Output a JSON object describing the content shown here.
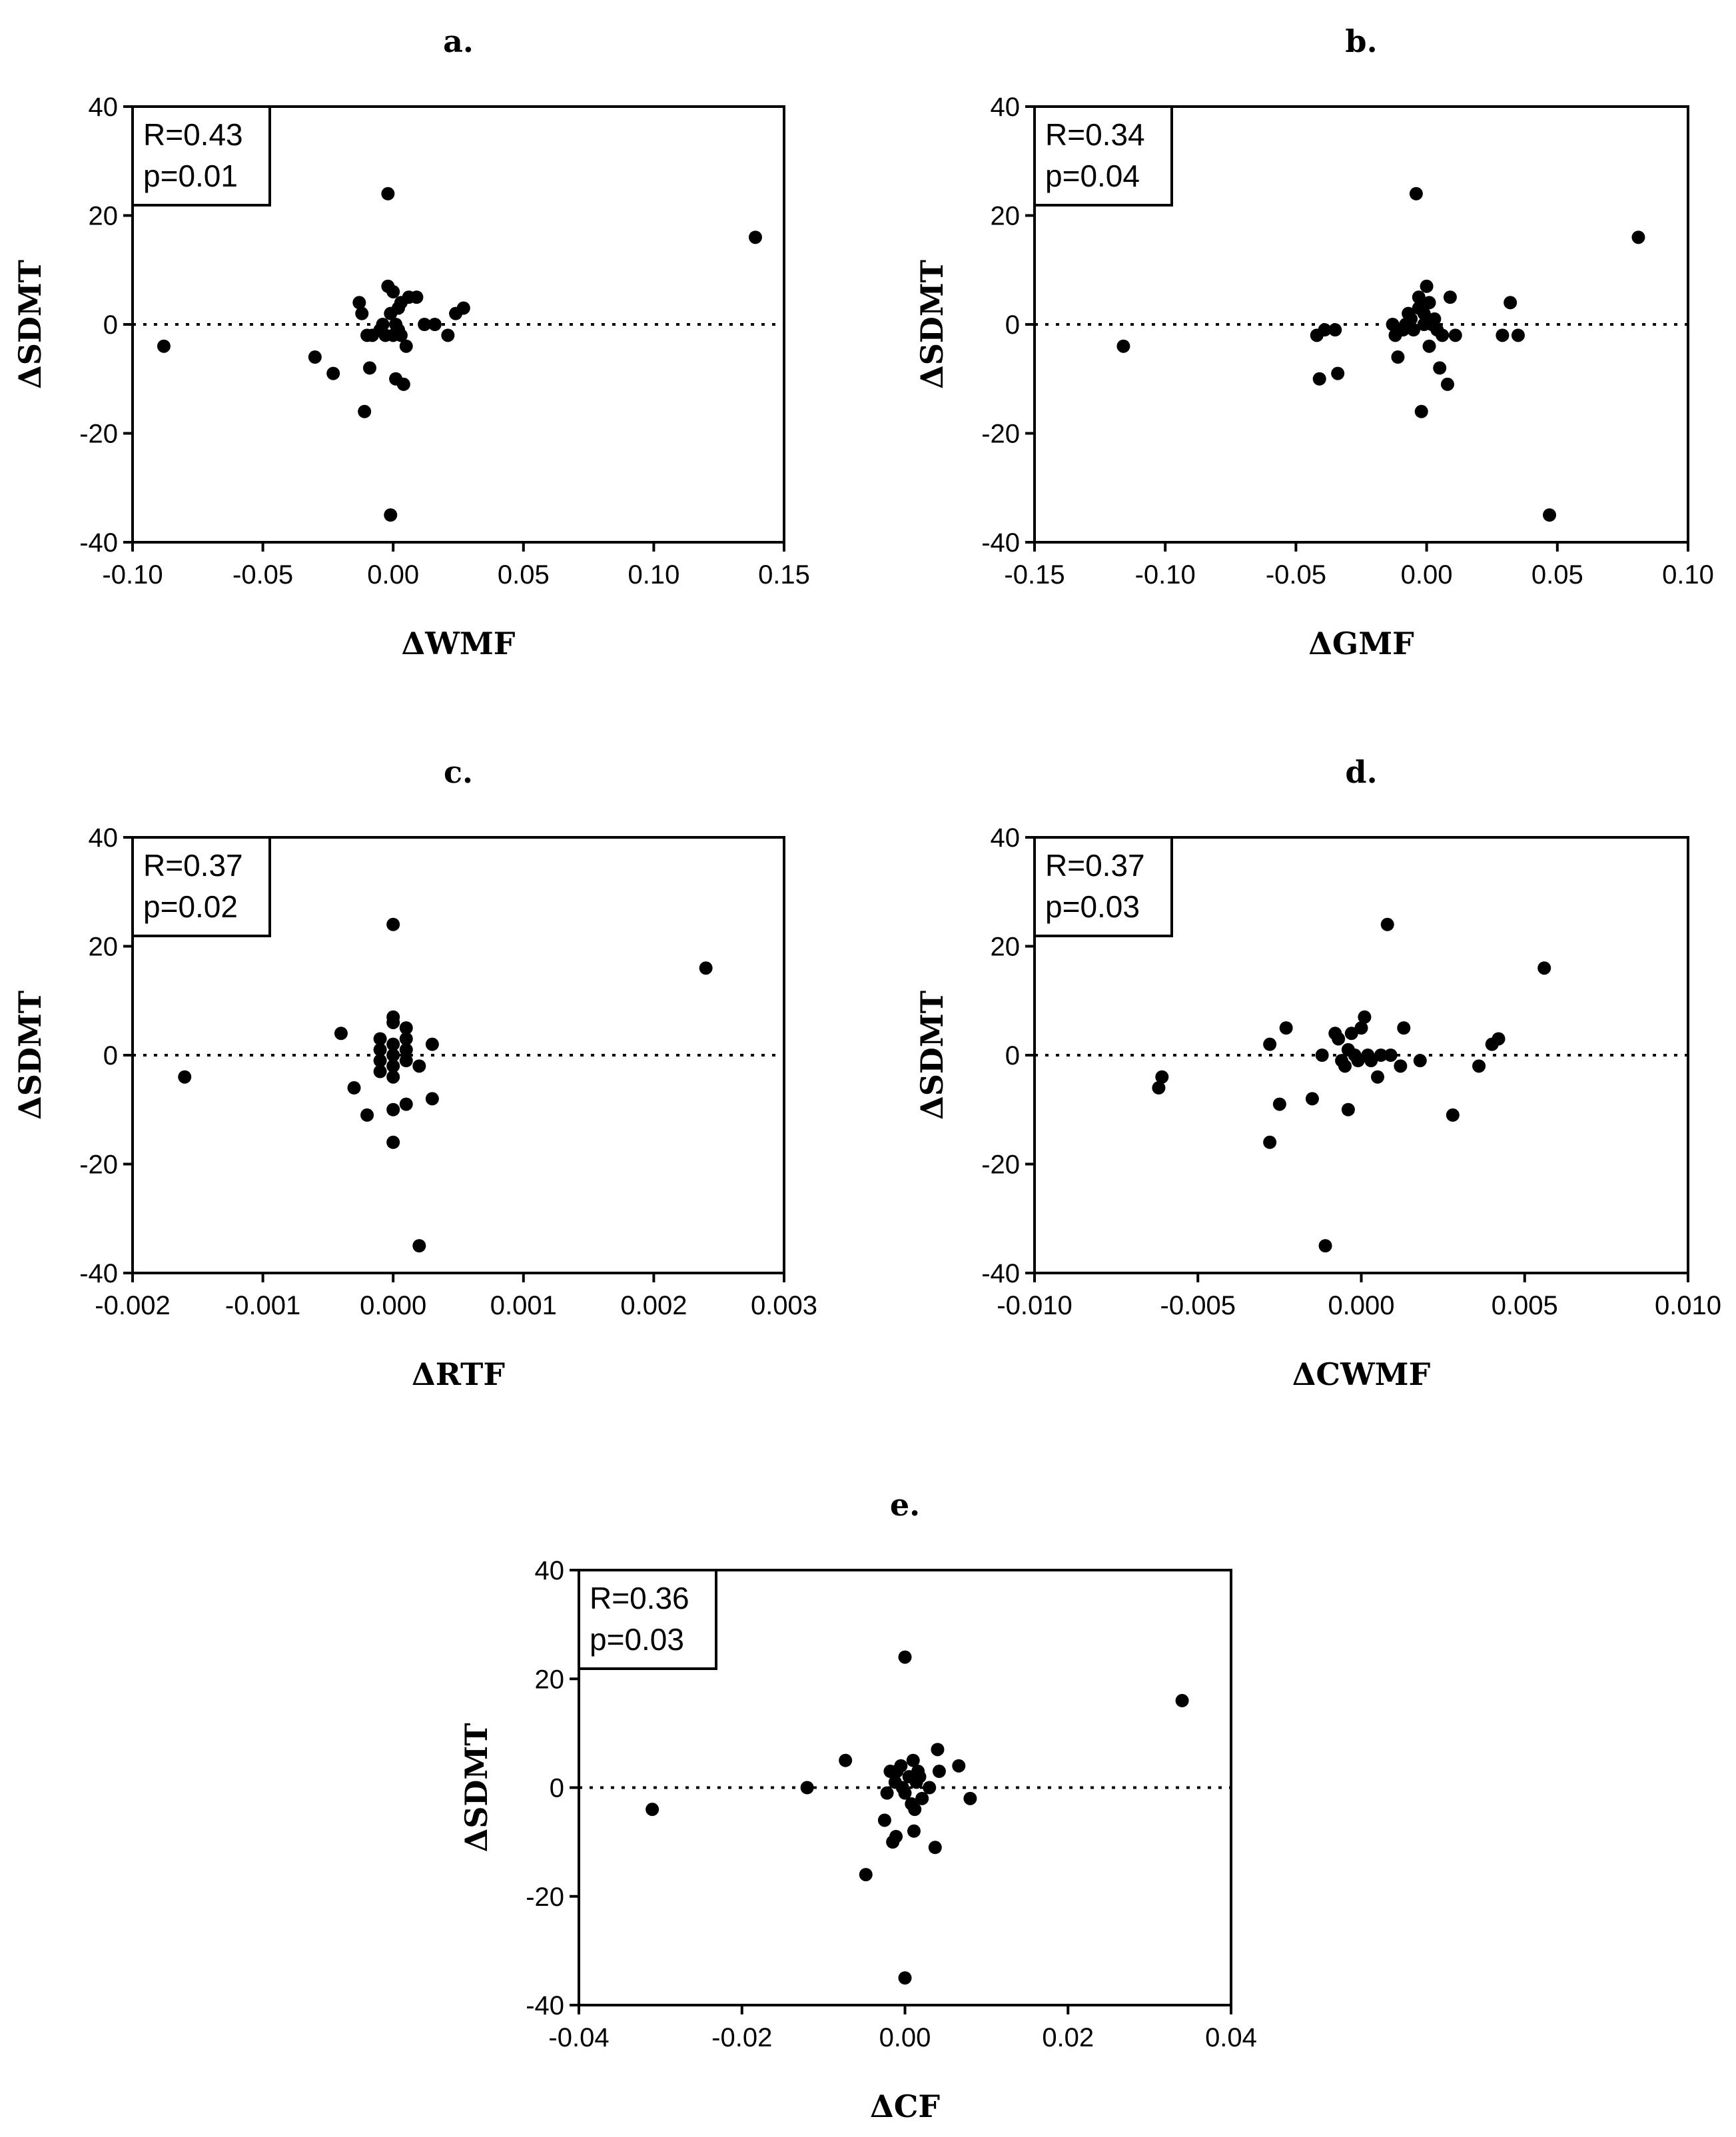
{
  "chart_data": [
    {
      "type": "scatter",
      "panel": "a.",
      "xlabel": "ΔWMF",
      "ylabel": "ΔSDMT",
      "xlim": [
        -0.1,
        0.15
      ],
      "ylim": [
        -40,
        40
      ],
      "xticks": [
        -0.1,
        -0.05,
        0.0,
        0.05,
        0.1,
        0.15
      ],
      "xtick_labels": [
        "-0.10",
        "-0.05",
        "0.00",
        "0.05",
        "0.10",
        "0.15"
      ],
      "yticks": [
        -40,
        -20,
        0,
        20,
        40
      ],
      "ytick_labels": [
        "-40",
        "-20",
        "0",
        "20",
        "40"
      ],
      "stats": {
        "r": "R=0.43",
        "p": "p=0.01"
      },
      "reference_line_y": 0,
      "points": [
        [
          -0.088,
          -4
        ],
        [
          -0.03,
          -6
        ],
        [
          -0.023,
          -9
        ],
        [
          -0.013,
          4
        ],
        [
          -0.012,
          2
        ],
        [
          -0.011,
          -16
        ],
        [
          -0.01,
          -2
        ],
        [
          -0.009,
          -8
        ],
        [
          -0.008,
          -2
        ],
        [
          -0.005,
          -1
        ],
        [
          -0.004,
          0
        ],
        [
          -0.003,
          -2
        ],
        [
          -0.002,
          7
        ],
        [
          -0.002,
          24
        ],
        [
          -0.001,
          -35
        ],
        [
          -0.001,
          2
        ],
        [
          0.0,
          6
        ],
        [
          0.0,
          -2
        ],
        [
          0.001,
          0
        ],
        [
          0.001,
          -10
        ],
        [
          0.002,
          3
        ],
        [
          0.002,
          -1
        ],
        [
          0.003,
          4
        ],
        [
          0.003,
          -2
        ],
        [
          0.004,
          -11
        ],
        [
          0.005,
          -4
        ],
        [
          0.006,
          5
        ],
        [
          0.009,
          5
        ],
        [
          0.012,
          0
        ],
        [
          0.016,
          0
        ],
        [
          0.021,
          -2
        ],
        [
          0.024,
          2
        ],
        [
          0.027,
          3
        ],
        [
          0.139,
          16
        ]
      ]
    },
    {
      "type": "scatter",
      "panel": "b.",
      "xlabel": "ΔGMF",
      "ylabel": "ΔSDMT",
      "xlim": [
        -0.15,
        0.1
      ],
      "ylim": [
        -40,
        40
      ],
      "xticks": [
        -0.15,
        -0.1,
        -0.05,
        0.0,
        0.05,
        0.1
      ],
      "xtick_labels": [
        "-0.15",
        "-0.10",
        "-0.05",
        "0.00",
        "0.05",
        "0.10"
      ],
      "yticks": [
        -40,
        -20,
        0,
        20,
        40
      ],
      "ytick_labels": [
        "-40",
        "-20",
        "0",
        "20",
        "40"
      ],
      "stats": {
        "r": "R=0.34",
        "p": "p=0.04"
      },
      "reference_line_y": 0,
      "points": [
        [
          -0.116,
          -4
        ],
        [
          -0.042,
          -2
        ],
        [
          -0.041,
          -10
        ],
        [
          -0.039,
          -1
        ],
        [
          -0.035,
          -1
        ],
        [
          -0.034,
          -9
        ],
        [
          -0.013,
          0
        ],
        [
          -0.012,
          -2
        ],
        [
          -0.011,
          -6
        ],
        [
          -0.009,
          -1
        ],
        [
          -0.008,
          0
        ],
        [
          -0.007,
          2
        ],
        [
          -0.006,
          1
        ],
        [
          -0.005,
          -1
        ],
        [
          -0.004,
          24
        ],
        [
          -0.003,
          5
        ],
        [
          -0.003,
          3
        ],
        [
          -0.002,
          -16
        ],
        [
          -0.001,
          2
        ],
        [
          -0.001,
          0
        ],
        [
          0.0,
          7
        ],
        [
          0.001,
          -4
        ],
        [
          0.001,
          4
        ],
        [
          0.002,
          0
        ],
        [
          0.003,
          1
        ],
        [
          0.004,
          -1
        ],
        [
          0.005,
          -8
        ],
        [
          0.006,
          -2
        ],
        [
          0.008,
          -11
        ],
        [
          0.009,
          5
        ],
        [
          0.011,
          -2
        ],
        [
          0.029,
          -2
        ],
        [
          0.032,
          4
        ],
        [
          0.035,
          -2
        ],
        [
          0.047,
          -35
        ],
        [
          0.081,
          16
        ]
      ]
    },
    {
      "type": "scatter",
      "panel": "c.",
      "xlabel": "ΔRTF",
      "ylabel": "ΔSDMT",
      "xlim": [
        -0.002,
        0.003
      ],
      "ylim": [
        -40,
        40
      ],
      "xticks": [
        -0.002,
        -0.001,
        0.0,
        0.001,
        0.002,
        0.003
      ],
      "xtick_labels": [
        "-0.002",
        "-0.001",
        "0.000",
        "0.001",
        "0.002",
        "0.003"
      ],
      "yticks": [
        -40,
        -20,
        0,
        20,
        40
      ],
      "ytick_labels": [
        "-40",
        "-20",
        "0",
        "20",
        "40"
      ],
      "stats": {
        "r": "R=0.37",
        "p": "p=0.02"
      },
      "reference_line_y": 0,
      "points": [
        [
          -0.0016,
          -4
        ],
        [
          -0.0004,
          4
        ],
        [
          -0.0003,
          -6
        ],
        [
          -0.0002,
          -11
        ],
        [
          -0.0001,
          3
        ],
        [
          -0.0001,
          1
        ],
        [
          -0.0001,
          -1
        ],
        [
          -0.0001,
          -3
        ],
        [
          0.0,
          7
        ],
        [
          0.0,
          6
        ],
        [
          0.0,
          24
        ],
        [
          0.0,
          2
        ],
        [
          0.0,
          0
        ],
        [
          0.0,
          -2
        ],
        [
          0.0,
          -4
        ],
        [
          0.0,
          -10
        ],
        [
          0.0,
          -16
        ],
        [
          0.0001,
          5
        ],
        [
          0.0001,
          3
        ],
        [
          0.0001,
          1
        ],
        [
          0.0001,
          -1
        ],
        [
          0.0001,
          -9
        ],
        [
          0.0002,
          -2
        ],
        [
          0.0002,
          -35
        ],
        [
          0.0003,
          2
        ],
        [
          0.0003,
          -8
        ],
        [
          0.0024,
          16
        ]
      ]
    },
    {
      "type": "scatter",
      "panel": "d.",
      "xlabel": "ΔCWMF",
      "ylabel": "ΔSDMT",
      "xlim": [
        -0.01,
        0.01
      ],
      "ylim": [
        -40,
        40
      ],
      "xticks": [
        -0.01,
        -0.005,
        0.0,
        0.005,
        0.01
      ],
      "xtick_labels": [
        "-0.010",
        "-0.005",
        "0.000",
        "0.005",
        "0.010"
      ],
      "yticks": [
        -40,
        -20,
        0,
        20,
        40
      ],
      "ytick_labels": [
        "-40",
        "-20",
        "0",
        "20",
        "40"
      ],
      "stats": {
        "r": "R=0.37",
        "p": "p=0.03"
      },
      "reference_line_y": 0,
      "points": [
        [
          -0.0061,
          -4
        ],
        [
          -0.0062,
          -6
        ],
        [
          -0.0028,
          2
        ],
        [
          -0.0028,
          -16
        ],
        [
          -0.0025,
          -9
        ],
        [
          -0.0023,
          5
        ],
        [
          -0.0015,
          -8
        ],
        [
          -0.0012,
          0
        ],
        [
          -0.0011,
          -35
        ],
        [
          -0.0008,
          4
        ],
        [
          -0.0007,
          3
        ],
        [
          -0.0006,
          -1
        ],
        [
          -0.0005,
          -2
        ],
        [
          -0.0004,
          -10
        ],
        [
          -0.0004,
          1
        ],
        [
          -0.0003,
          4
        ],
        [
          -0.0002,
          0
        ],
        [
          -0.0001,
          -1
        ],
        [
          0.0,
          5
        ],
        [
          0.0001,
          7
        ],
        [
          0.0002,
          0
        ],
        [
          0.0003,
          -1
        ],
        [
          0.0005,
          -4
        ],
        [
          0.0006,
          0
        ],
        [
          0.0008,
          24
        ],
        [
          0.0009,
          0
        ],
        [
          0.0012,
          -2
        ],
        [
          0.0013,
          5
        ],
        [
          0.0018,
          -1
        ],
        [
          0.0028,
          -11
        ],
        [
          0.0036,
          -2
        ],
        [
          0.004,
          2
        ],
        [
          0.0042,
          3
        ],
        [
          0.0056,
          16
        ]
      ]
    },
    {
      "type": "scatter",
      "panel": "e.",
      "xlabel": "ΔCF",
      "ylabel": "ΔSDMT",
      "xlim": [
        -0.04,
        0.04
      ],
      "ylim": [
        -40,
        40
      ],
      "xticks": [
        -0.04,
        -0.02,
        0.0,
        0.02,
        0.04
      ],
      "xtick_labels": [
        "-0.04",
        "-0.02",
        "0.00",
        "0.02",
        "0.04"
      ],
      "yticks": [
        -40,
        -20,
        0,
        20,
        40
      ],
      "ytick_labels": [
        "-40",
        "-20",
        "0",
        "20",
        "40"
      ],
      "stats": {
        "r": "R=0.36",
        "p": "p=0.03"
      },
      "reference_line_y": 0,
      "points": [
        [
          -0.031,
          -4
        ],
        [
          -0.012,
          0
        ],
        [
          -0.0073,
          5
        ],
        [
          -0.0048,
          -16
        ],
        [
          -0.0025,
          -6
        ],
        [
          -0.0022,
          -1
        ],
        [
          -0.0018,
          3
        ],
        [
          -0.0015,
          -10
        ],
        [
          -0.0012,
          1
        ],
        [
          -0.0011,
          -9
        ],
        [
          -0.001,
          3
        ],
        [
          -0.0005,
          4
        ],
        [
          -0.0003,
          0
        ],
        [
          0.0,
          24
        ],
        [
          0.0,
          -1
        ],
        [
          0.0,
          -35
        ],
        [
          0.0005,
          2
        ],
        [
          0.0008,
          -3
        ],
        [
          0.001,
          5
        ],
        [
          0.0011,
          -8
        ],
        [
          0.0012,
          -4
        ],
        [
          0.0014,
          1
        ],
        [
          0.0016,
          3
        ],
        [
          0.0018,
          2
        ],
        [
          0.0021,
          -2
        ],
        [
          0.003,
          0
        ],
        [
          0.0037,
          -11
        ],
        [
          0.004,
          7
        ],
        [
          0.0042,
          3
        ],
        [
          0.0066,
          4
        ],
        [
          0.008,
          -2
        ],
        [
          0.034,
          16
        ]
      ]
    }
  ]
}
